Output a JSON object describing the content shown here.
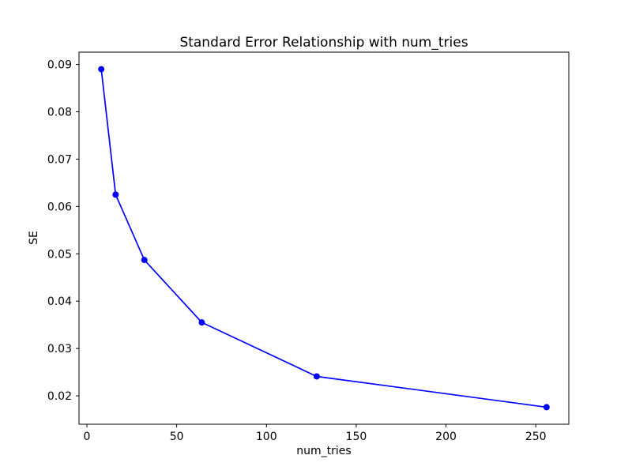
{
  "figure": {
    "background": "#ffffff"
  },
  "chart_data": {
    "type": "line",
    "title": "Standard Error Relationship with num_tries",
    "xlabel": "num_tries",
    "ylabel": "SE",
    "x": [
      8,
      16,
      32,
      64,
      128,
      256
    ],
    "y": [
      0.089,
      0.0625,
      0.0487,
      0.0355,
      0.0241,
      0.0176
    ],
    "xlim": [
      -4.4,
      268.4
    ],
    "ylim": [
      0.014,
      0.0926
    ],
    "x_ticks": [
      0,
      50,
      100,
      150,
      200,
      250
    ],
    "y_ticks": [
      0.02,
      0.03,
      0.04,
      0.05,
      0.06,
      0.07,
      0.08,
      0.09
    ],
    "y_tick_decimals": 2,
    "line_color": "#0000ff",
    "axis_color": "#000000",
    "marker": "circle",
    "marker_radius": 4,
    "line_width": 1.7,
    "grid": false,
    "legend": null
  }
}
